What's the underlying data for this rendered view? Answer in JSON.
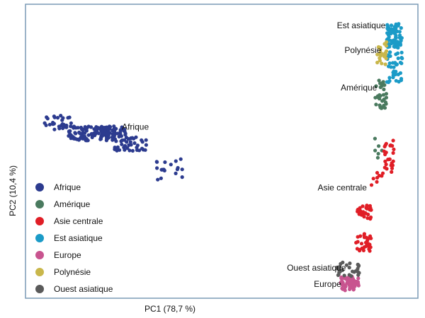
{
  "chart_data": {
    "type": "scatter",
    "title": "",
    "xlabel": "PC1 (78,7 %)",
    "ylabel": "PC2 (10,4 %)",
    "grid": false,
    "legend_position": "left",
    "xlim": [
      0,
      100
    ],
    "ylim": [
      -70,
      90
    ],
    "series": [
      {
        "name": "Afrique",
        "color": "#2c3b8f",
        "clusters": [
          {
            "x": [
              3,
              11
            ],
            "y": [
              22,
              30
            ],
            "n": 30
          },
          {
            "x": [
              10,
              25
            ],
            "y": [
              16,
              24
            ],
            "n": 140
          },
          {
            "x": [
              22,
              31
            ],
            "y": [
              10,
              18
            ],
            "n": 40
          },
          {
            "x": [
              32,
              40
            ],
            "y": [
              -6,
              6
            ],
            "n": 18
          }
        ]
      },
      {
        "name": "Amérique",
        "color": "#4a7a5f",
        "clusters": [
          {
            "x": [
              90,
              93
            ],
            "y": [
              34,
              50
            ],
            "n": 30
          },
          {
            "x": [
              89,
              92
            ],
            "y": [
              6,
              20
            ],
            "n": 6
          }
        ]
      },
      {
        "name": "Asie centrale",
        "color": "#e01e26",
        "clusters": [
          {
            "x": [
              92,
              95
            ],
            "y": [
              -2,
              16
            ],
            "n": 25
          },
          {
            "x": [
              89,
              92
            ],
            "y": [
              -12,
              -2
            ],
            "n": 8
          },
          {
            "x": [
              85,
              89
            ],
            "y": [
              -28,
              -20
            ],
            "n": 30
          },
          {
            "x": [
              85,
              89
            ],
            "y": [
              -46,
              -36
            ],
            "n": 30
          }
        ]
      },
      {
        "name": "Est asiatique",
        "color": "#1b9bc7",
        "clusters": [
          {
            "x": [
              93,
              97
            ],
            "y": [
              68,
              82
            ],
            "n": 80
          },
          {
            "x": [
              93,
              97
            ],
            "y": [
              48,
              66
            ],
            "n": 40
          }
        ]
      },
      {
        "name": "Europe",
        "color": "#c8548f",
        "clusters": [
          {
            "x": [
              81,
              86
            ],
            "y": [
              -68,
              -60
            ],
            "n": 60
          }
        ]
      },
      {
        "name": "Polynésie",
        "color": "#c9b74b",
        "clusters": [
          {
            "x": [
              90,
              93
            ],
            "y": [
              58,
              72
            ],
            "n": 22
          }
        ]
      },
      {
        "name": "Ouest asiatique",
        "color": "#5a5a5a",
        "clusters": [
          {
            "x": [
              80,
              86
            ],
            "y": [
              -60,
              -52
            ],
            "n": 28
          }
        ]
      }
    ],
    "annotations": [
      {
        "text": "Afrique",
        "x": 24,
        "y": 22
      },
      {
        "text": "Est asiatique",
        "x": 80,
        "y": 79
      },
      {
        "text": "Polynésie",
        "x": 82,
        "y": 65
      },
      {
        "text": "Amérique",
        "x": 81,
        "y": 44
      },
      {
        "text": "Asie centrale",
        "x": 75,
        "y": -12
      },
      {
        "text": "Ouest asiatique",
        "x": 67,
        "y": -57
      },
      {
        "text": "Europe",
        "x": 74,
        "y": -66
      }
    ]
  }
}
